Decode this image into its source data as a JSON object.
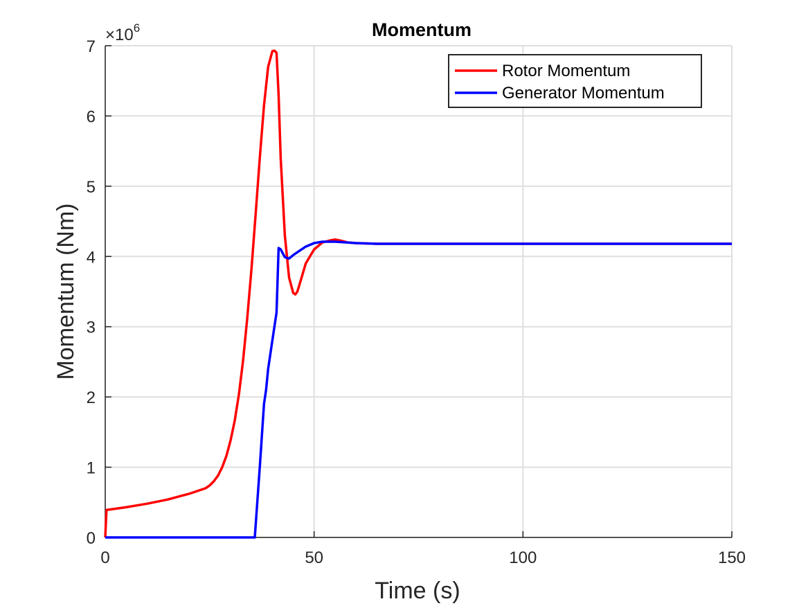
{
  "chart_data": {
    "type": "line",
    "title": "Momentum",
    "xlabel": "Time (s)",
    "ylabel": "Momentum (Nm)",
    "y_multiplier_base": "×10",
    "y_multiplier_exponent": "6",
    "xlim": [
      0,
      150
    ],
    "ylim": [
      0,
      7
    ],
    "x_ticks": [
      0,
      50,
      100,
      150
    ],
    "y_ticks": [
      0,
      1,
      2,
      3,
      4,
      5,
      6,
      7
    ],
    "x_tick_labels": [
      "0",
      "50",
      "100",
      "150"
    ],
    "y_tick_labels": [
      "0",
      "1",
      "2",
      "3",
      "4",
      "5",
      "6",
      "7"
    ],
    "grid": true,
    "legend_position": "top-right",
    "series": [
      {
        "name": "Rotor Momentum",
        "color": "#ff0000",
        "x": [
          0,
          0.3,
          5,
          10,
          15,
          20,
          24,
          25,
          26,
          27,
          28,
          29,
          30,
          31,
          32,
          33,
          34,
          35,
          36,
          37,
          38,
          39,
          40,
          40.5,
          41,
          41.5,
          42,
          43,
          44,
          45,
          45.5,
          46,
          47,
          48,
          50,
          52,
          54,
          55,
          56,
          58,
          60,
          65,
          70,
          80,
          100,
          120,
          150
        ],
        "y": [
          0,
          0.39,
          0.43,
          0.48,
          0.54,
          0.62,
          0.7,
          0.74,
          0.8,
          0.88,
          1.0,
          1.16,
          1.38,
          1.66,
          2.04,
          2.52,
          3.12,
          3.82,
          4.6,
          5.4,
          6.15,
          6.7,
          6.92,
          6.93,
          6.9,
          6.3,
          5.4,
          4.3,
          3.7,
          3.48,
          3.46,
          3.5,
          3.7,
          3.9,
          4.1,
          4.2,
          4.23,
          4.24,
          4.23,
          4.2,
          4.19,
          4.18,
          4.18,
          4.18,
          4.18,
          4.18,
          4.18
        ]
      },
      {
        "name": "Generator Momentum",
        "color": "#0000ff",
        "x": [
          0,
          35.8,
          37,
          38,
          38.5,
          39,
          40,
          41,
          41.5,
          42,
          43,
          44,
          45,
          46,
          48,
          50,
          52,
          55,
          60,
          65,
          70,
          100,
          150
        ],
        "y": [
          0,
          0,
          1.0,
          1.9,
          2.1,
          2.4,
          2.8,
          3.2,
          4.12,
          4.1,
          3.99,
          3.97,
          4.02,
          4.06,
          4.14,
          4.19,
          4.21,
          4.21,
          4.19,
          4.18,
          4.18,
          4.18,
          4.18
        ]
      }
    ]
  }
}
